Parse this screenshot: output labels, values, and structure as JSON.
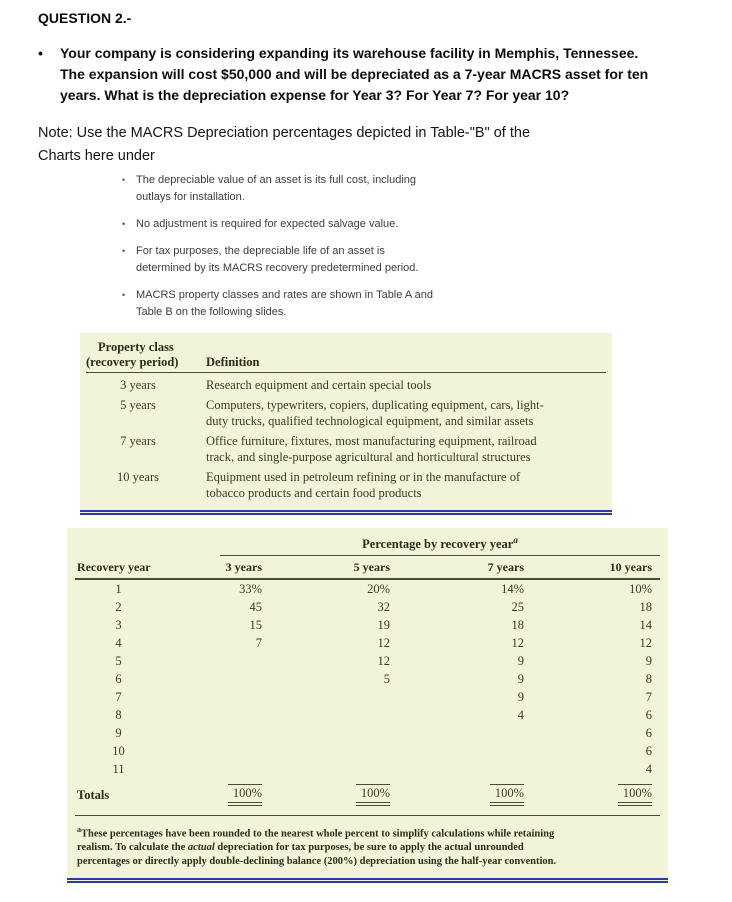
{
  "document": {
    "title": "QUESTION 2.-",
    "question": "Your company is considering expanding its warehouse facility in Memphis, Tennessee.\nThe expansion will cost $50,000 and will be depreciated as a 7-year MACRS asset for ten\nyears.  What is the depreciation expense for Year 3? For Year 7? For year 10?",
    "note": "Note: Use the MACRS Depreciation percentages depicted in Table-\"B\" of the\nCharts here under",
    "bullets": [
      "The depreciable value of an asset is its full cost, including\noutlays for installation.",
      "No adjustment is required for expected salvage value.",
      "For tax purposes, the depreciable life of an asset is\ndetermined by its MACRS recovery predetermined period.",
      "MACRS property classes and rates are shown in Table A and\nTable B on the following slides."
    ]
  },
  "table_a": {
    "header": {
      "col1_line1": "Property class",
      "col1_line2": "(recovery period)",
      "col2": "Definition"
    },
    "rows": [
      {
        "period": "3 years",
        "definition": "Research equipment and certain special tools"
      },
      {
        "period": "5 years",
        "definition": "Computers, typewriters, copiers, duplicating equipment, cars, light-\nduty trucks, qualified technological equipment, and similar assets"
      },
      {
        "period": "7 years",
        "definition": "Office furniture, fixtures, most manufacturing equipment, railroad\ntrack, and single-purpose agricultural and horticultural structures"
      },
      {
        "period": "10 years",
        "definition": "Equipment used in petroleum refining or in the manufacture of\ntobacco products and certain food products"
      }
    ]
  },
  "table_b": {
    "span_header": "Percentage by recovery year",
    "span_header_sup": "a",
    "columns": [
      "Recovery year",
      "3 years",
      "5 years",
      "7 years",
      "10 years"
    ],
    "rows": [
      [
        "1",
        "33%",
        "20%",
        "14%",
        "10%"
      ],
      [
        "2",
        "45",
        "32",
        "25",
        "18"
      ],
      [
        "3",
        "15",
        "19",
        "18",
        "14"
      ],
      [
        "4",
        "7",
        "12",
        "12",
        "12"
      ],
      [
        "5",
        "",
        "12",
        "9",
        "9"
      ],
      [
        "6",
        "",
        "5",
        "9",
        "8"
      ],
      [
        "7",
        "",
        "",
        "9",
        "7"
      ],
      [
        "8",
        "",
        "",
        "4",
        "6"
      ],
      [
        "9",
        "",
        "",
        "",
        "6"
      ],
      [
        "10",
        "",
        "",
        "",
        "6"
      ],
      [
        "11",
        "",
        "",
        "",
        "4"
      ]
    ],
    "totals": [
      "Totals",
      "100%",
      "100%",
      "100%",
      "100%"
    ]
  },
  "footnote": {
    "sup": "a",
    "text_before_italic": "These percentages have been rounded to the nearest whole percent to simplify calculations while retaining\nrealism. To calculate the ",
    "italic_word": "actual",
    "text_after_italic": " depreciation for tax purposes, be sure to apply the actual unrounded\npercentages or directly apply double-declining balance (200%) depreciation using the half-year convention."
  },
  "colors": {
    "table_background": "#f1f4d9",
    "accent_line_blue": "#2a3f96",
    "table_rule": "#4a4a35"
  }
}
